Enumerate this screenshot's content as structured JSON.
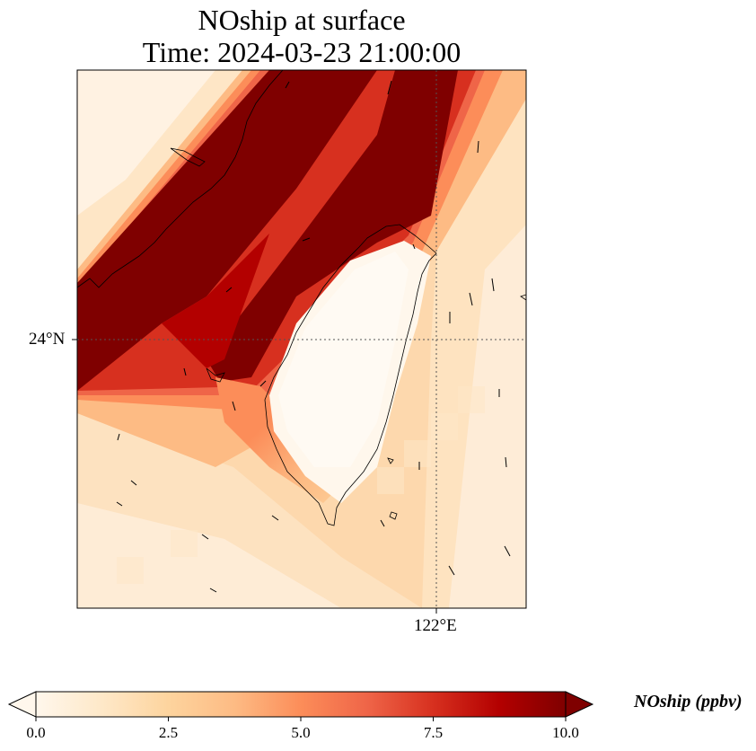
{
  "title": {
    "line1": "NOship at surface",
    "line2": "Time: 2024-03-23 21:00:00"
  },
  "map": {
    "lat_label": "24°N",
    "lon_label": "122°E",
    "gridlines": "dotted",
    "coastline": "Taiwan and southeast China coast"
  },
  "colorbar": {
    "label": "NOship (ppbv)",
    "ticks": [
      "0.0",
      "2.5",
      "5.0",
      "7.5",
      "10.0"
    ],
    "min": 0.0,
    "max": 10.0,
    "extend": "both",
    "colormap": "OrRd",
    "colors": [
      "#fff7ec",
      "#fee8c8",
      "#fdd49e",
      "#fdbb84",
      "#fc8d59",
      "#ef6548",
      "#d7301f",
      "#b30000",
      "#7f0000"
    ]
  },
  "chart_data": {
    "type": "heatmap",
    "title": "NOship at surface",
    "subtitle": "Time: 2024-03-23 21:00:00",
    "variable": "NOship",
    "units": "ppbv",
    "color_range": [
      0.0,
      10.0
    ],
    "features": [
      {
        "name": "high band along Taiwan Strait / China coast",
        "value": 10.0
      },
      {
        "name": "interior of Taiwan island",
        "value": 0.1
      },
      {
        "name": "open ocean east of Taiwan",
        "value": 2.0
      }
    ]
  }
}
